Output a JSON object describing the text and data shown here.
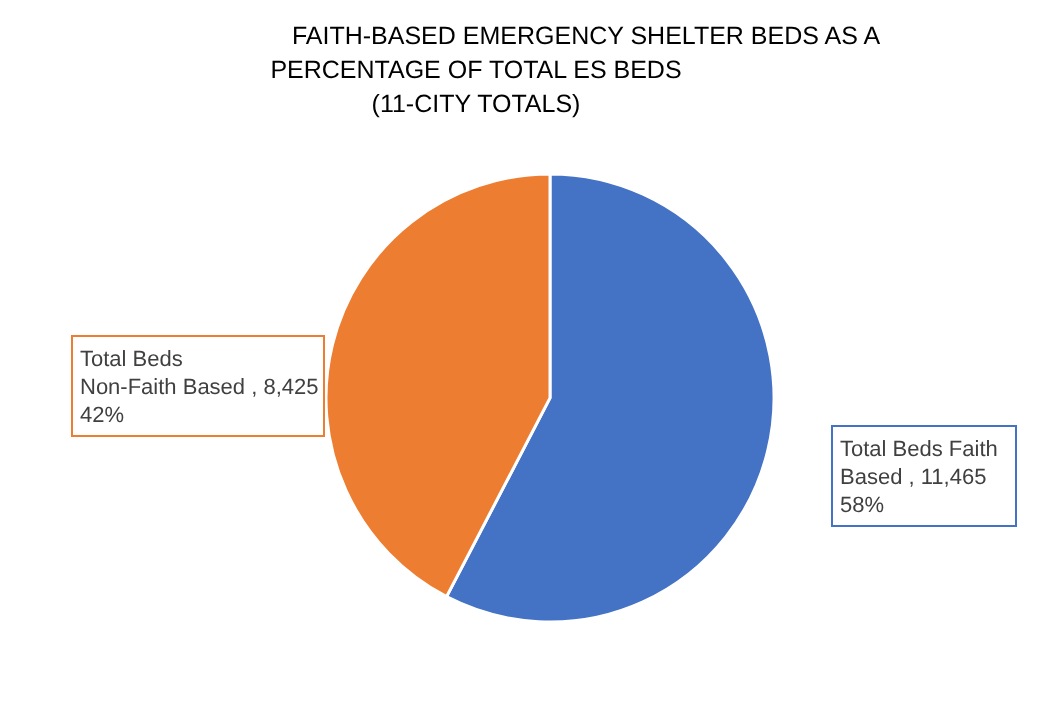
{
  "chart_data": {
    "type": "pie",
    "title": "FAITH-BASED EMERGENCY SHELTER BEDS AS A\nPERCENTAGE OF TOTAL ES BEDS\n(11-CITY TOTALS)",
    "categories": [
      "Total Beds Faith Based",
      "Total Beds Non-Faith Based"
    ],
    "values": [
      11465,
      8425
    ],
    "colors": [
      "#4472c4",
      "#ed7d31"
    ],
    "value_labels": [
      "11,465 58%",
      "8,425 42%"
    ]
  }
}
